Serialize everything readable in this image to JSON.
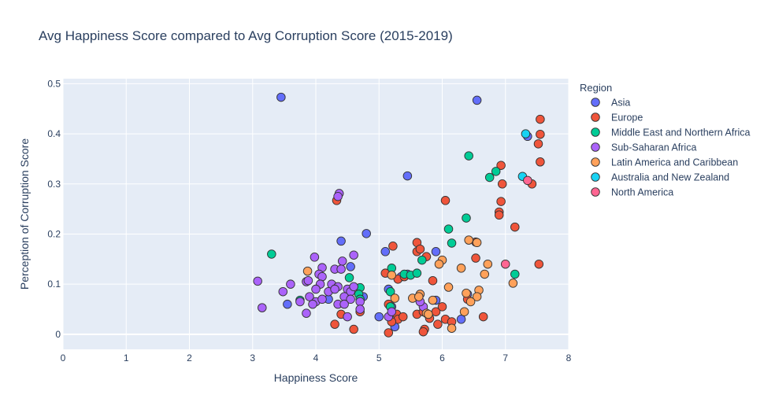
{
  "chart_data": {
    "type": "scatter",
    "title": "Avg Happiness Score compared to Avg Corruption Score (2015-2019)",
    "xlabel": "Happiness Score",
    "ylabel": "Perception of Corruption Score",
    "xlim": [
      0,
      8
    ],
    "ylim": [
      -0.03,
      0.51
    ],
    "xticks": [
      0,
      1,
      2,
      3,
      4,
      5,
      6,
      7,
      8
    ],
    "yticks": [
      0,
      0.1,
      0.2,
      0.3,
      0.4,
      0.5
    ],
    "xtick_labels": [
      "0",
      "1",
      "2",
      "3",
      "4",
      "5",
      "6",
      "7",
      "8"
    ],
    "ytick_labels": [
      "0",
      "0.1",
      "0.2",
      "0.3",
      "0.4",
      "0.5"
    ],
    "grid": true,
    "plot_bgcolor": "#E5ECF6",
    "legend": {
      "title": "Region",
      "placement": "right"
    },
    "series": [
      {
        "name": "Asia",
        "color": "#636EFA",
        "points": [
          [
            3.45,
            0.473
          ],
          [
            6.55,
            0.467
          ],
          [
            5.45,
            0.316
          ],
          [
            4.8,
            0.201
          ],
          [
            4.4,
            0.186
          ],
          [
            5.1,
            0.165
          ],
          [
            5.9,
            0.165
          ],
          [
            4.55,
            0.135
          ],
          [
            5.35,
            0.115
          ],
          [
            4.3,
            0.095
          ],
          [
            4.2,
            0.07
          ],
          [
            3.55,
            0.06
          ],
          [
            5.15,
            0.09
          ],
          [
            5.2,
            0.055
          ],
          [
            5.0,
            0.035
          ],
          [
            5.25,
            0.015
          ],
          [
            5.9,
            0.068
          ],
          [
            6.4,
            0.08
          ],
          [
            6.3,
            0.03
          ],
          [
            7.35,
            0.395
          ],
          [
            5.45,
            0.12
          ],
          [
            4.75,
            0.075
          ]
        ]
      },
      {
        "name": "Europe",
        "color": "#EF553B",
        "points": [
          [
            7.55,
            0.429
          ],
          [
            7.55,
            0.399
          ],
          [
            7.52,
            0.38
          ],
          [
            7.55,
            0.344
          ],
          [
            6.93,
            0.337
          ],
          [
            6.95,
            0.3
          ],
          [
            7.42,
            0.3
          ],
          [
            6.05,
            0.267
          ],
          [
            6.93,
            0.265
          ],
          [
            6.9,
            0.244
          ],
          [
            6.9,
            0.238
          ],
          [
            6.53,
            0.184
          ],
          [
            7.15,
            0.214
          ],
          [
            4.33,
            0.267
          ],
          [
            5.6,
            0.183
          ],
          [
            5.22,
            0.176
          ],
          [
            5.6,
            0.165
          ],
          [
            5.65,
            0.17
          ],
          [
            5.75,
            0.155
          ],
          [
            6.53,
            0.152
          ],
          [
            7.53,
            0.14
          ],
          [
            5.1,
            0.122
          ],
          [
            5.3,
            0.11
          ],
          [
            5.4,
            0.115
          ],
          [
            5.85,
            0.107
          ],
          [
            5.15,
            0.06
          ],
          [
            5.28,
            0.04
          ],
          [
            5.3,
            0.03
          ],
          [
            5.38,
            0.035
          ],
          [
            5.2,
            0.025
          ],
          [
            5.15,
            0.003
          ],
          [
            5.6,
            0.04
          ],
          [
            5.7,
            0.045
          ],
          [
            5.72,
            0.01
          ],
          [
            5.9,
            0.045
          ],
          [
            5.93,
            0.02
          ],
          [
            6.0,
            0.055
          ],
          [
            6.05,
            0.03
          ],
          [
            6.15,
            0.025
          ],
          [
            6.4,
            0.07
          ],
          [
            6.65,
            0.035
          ],
          [
            4.4,
            0.04
          ],
          [
            4.3,
            0.02
          ],
          [
            4.6,
            0.01
          ],
          [
            4.7,
            0.045
          ],
          [
            5.7,
            0.005
          ],
          [
            5.8,
            0.032
          ]
        ]
      },
      {
        "name": "Middle East and Northern Africa",
        "color": "#00CC96",
        "points": [
          [
            6.42,
            0.356
          ],
          [
            6.85,
            0.325
          ],
          [
            6.75,
            0.313
          ],
          [
            6.38,
            0.232
          ],
          [
            6.1,
            0.21
          ],
          [
            3.3,
            0.16
          ],
          [
            6.15,
            0.182
          ],
          [
            5.2,
            0.132
          ],
          [
            5.68,
            0.148
          ],
          [
            5.4,
            0.12
          ],
          [
            5.5,
            0.118
          ],
          [
            5.6,
            0.122
          ],
          [
            4.53,
            0.113
          ],
          [
            4.7,
            0.093
          ],
          [
            5.18,
            0.085
          ],
          [
            4.68,
            0.08
          ],
          [
            3.75,
            0.068
          ],
          [
            5.18,
            0.055
          ],
          [
            7.15,
            0.12
          ],
          [
            4.7,
            0.07
          ]
        ]
      },
      {
        "name": "Sub-Saharan Africa",
        "color": "#AB63FA",
        "points": [
          [
            4.37,
            0.281
          ],
          [
            4.35,
            0.275
          ],
          [
            3.98,
            0.154
          ],
          [
            4.6,
            0.158
          ],
          [
            4.42,
            0.146
          ],
          [
            4.1,
            0.133
          ],
          [
            4.3,
            0.13
          ],
          [
            4.4,
            0.13
          ],
          [
            4.05,
            0.12
          ],
          [
            4.1,
            0.115
          ],
          [
            3.85,
            0.105
          ],
          [
            3.88,
            0.107
          ],
          [
            4.07,
            0.1
          ],
          [
            3.6,
            0.1
          ],
          [
            3.08,
            0.106
          ],
          [
            4.25,
            0.1
          ],
          [
            4.35,
            0.095
          ],
          [
            4.5,
            0.09
          ],
          [
            4.55,
            0.085
          ],
          [
            4.6,
            0.095
          ],
          [
            3.48,
            0.085
          ],
          [
            3.9,
            0.075
          ],
          [
            4.0,
            0.09
          ],
          [
            4.2,
            0.085
          ],
          [
            4.3,
            0.09
          ],
          [
            4.45,
            0.075
          ],
          [
            4.55,
            0.07
          ],
          [
            3.75,
            0.065
          ],
          [
            4.0,
            0.065
          ],
          [
            4.1,
            0.07
          ],
          [
            4.35,
            0.06
          ],
          [
            4.45,
            0.06
          ],
          [
            4.7,
            0.065
          ],
          [
            4.5,
            0.035
          ],
          [
            3.85,
            0.042
          ],
          [
            3.15,
            0.053
          ],
          [
            3.95,
            0.06
          ],
          [
            4.7,
            0.05
          ],
          [
            5.15,
            0.035
          ],
          [
            5.7,
            0.055
          ],
          [
            5.2,
            0.045
          ],
          [
            5.65,
            0.065
          ]
        ]
      },
      {
        "name": "Latin America and Caribbean",
        "color": "#FFA15A",
        "points": [
          [
            6.42,
            0.188
          ],
          [
            6.55,
            0.183
          ],
          [
            6.0,
            0.148
          ],
          [
            5.95,
            0.14
          ],
          [
            6.72,
            0.14
          ],
          [
            6.3,
            0.132
          ],
          [
            6.67,
            0.12
          ],
          [
            5.2,
            0.118
          ],
          [
            3.87,
            0.126
          ],
          [
            7.12,
            0.102
          ],
          [
            6.1,
            0.094
          ],
          [
            6.58,
            0.088
          ],
          [
            6.38,
            0.082
          ],
          [
            6.55,
            0.075
          ],
          [
            6.45,
            0.065
          ],
          [
            5.25,
            0.072
          ],
          [
            5.53,
            0.072
          ],
          [
            5.65,
            0.08
          ],
          [
            5.63,
            0.075
          ],
          [
            5.85,
            0.068
          ],
          [
            6.35,
            0.045
          ],
          [
            6.15,
            0.012
          ],
          [
            5.75,
            0.042
          ],
          [
            5.78,
            0.04
          ]
        ]
      },
      {
        "name": "Australia and New Zealand",
        "color": "#19D3F3",
        "points": [
          [
            7.32,
            0.4
          ],
          [
            7.27,
            0.315
          ]
        ]
      },
      {
        "name": "North America",
        "color": "#FF6692",
        "points": [
          [
            7.35,
            0.307
          ],
          [
            7.0,
            0.14
          ]
        ]
      }
    ]
  }
}
